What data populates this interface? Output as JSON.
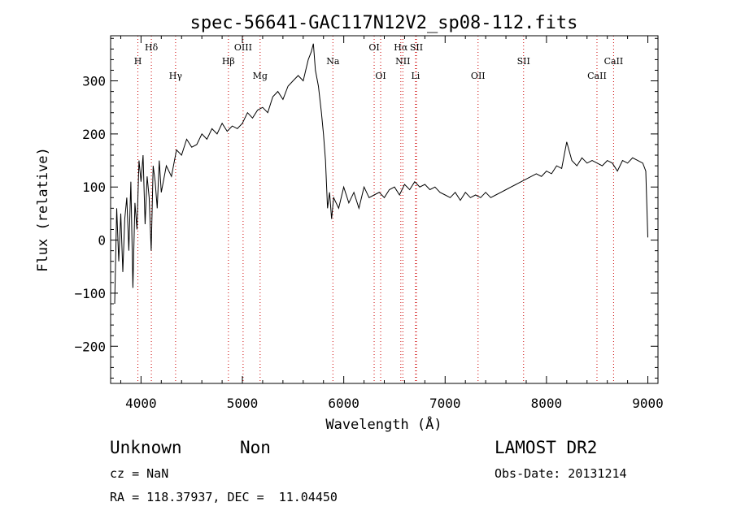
{
  "chart_data": {
    "type": "line",
    "title": "spec-56641-GAC117N12V2_sp08-112.fits",
    "xlabel": "Wavelength (Å)",
    "ylabel": "Flux (relative)",
    "xlim": [
      3700,
      9100
    ],
    "ylim": [
      -270,
      385
    ],
    "xticks": [
      4000,
      5000,
      6000,
      7000,
      8000,
      9000
    ],
    "yticks": [
      -200,
      -100,
      0,
      100,
      200,
      300
    ],
    "x_tick_labels": [
      "4000",
      "5000",
      "6000",
      "7000",
      "8000",
      "9000"
    ],
    "y_tick_labels": [
      "−200",
      "−100",
      "0",
      "100",
      "200",
      "300"
    ],
    "grid": false,
    "legend": "none",
    "line_color": "#000000",
    "marker_color": "#cc0000",
    "series": [
      {
        "x": [
          3740,
          3760,
          3780,
          3800,
          3820,
          3840,
          3860,
          3880,
          3900,
          3920,
          3940,
          3960,
          3980,
          4000,
          4020,
          4040,
          4060,
          4080,
          4100,
          4120,
          4140,
          4160,
          4180,
          4200,
          4250,
          4300,
          4350,
          4400,
          4450,
          4500,
          4550,
          4600,
          4650,
          4700,
          4750,
          4800,
          4850,
          4900,
          4950,
          5000,
          5050,
          5100,
          5150,
          5200,
          5250,
          5300,
          5350,
          5400,
          5450,
          5500,
          5550,
          5600,
          5650,
          5680,
          5700,
          5720,
          5750,
          5780,
          5800,
          5820,
          5840,
          5860,
          5880,
          5900,
          5950,
          6000,
          6050,
          6100,
          6150,
          6200,
          6250,
          6300,
          6350,
          6400,
          6450,
          6500,
          6550,
          6600,
          6650,
          6700,
          6750,
          6800,
          6850,
          6900,
          6950,
          7000,
          7050,
          7100,
          7150,
          7200,
          7250,
          7300,
          7350,
          7400,
          7450,
          7500,
          7550,
          7600,
          7650,
          7700,
          7750,
          7800,
          7850,
          7900,
          7950,
          8000,
          8050,
          8100,
          8150,
          8200,
          8250,
          8300,
          8350,
          8400,
          8450,
          8500,
          8550,
          8600,
          8650,
          8700,
          8750,
          8800,
          8850,
          8900,
          8950,
          8980,
          9000
        ],
        "y": [
          -120,
          60,
          -40,
          50,
          -60,
          40,
          80,
          -20,
          110,
          -90,
          70,
          20,
          150,
          110,
          160,
          30,
          120,
          80,
          -20,
          140,
          110,
          60,
          150,
          90,
          140,
          120,
          170,
          160,
          190,
          175,
          180,
          200,
          190,
          210,
          200,
          220,
          205,
          215,
          210,
          220,
          240,
          230,
          245,
          250,
          240,
          270,
          280,
          265,
          290,
          300,
          310,
          300,
          340,
          355,
          370,
          320,
          290,
          240,
          200,
          150,
          60,
          90,
          40,
          80,
          60,
          100,
          70,
          90,
          60,
          100,
          80,
          85,
          90,
          80,
          95,
          100,
          85,
          105,
          95,
          110,
          100,
          105,
          95,
          100,
          90,
          85,
          80,
          90,
          75,
          90,
          80,
          85,
          80,
          90,
          80,
          85,
          90,
          95,
          100,
          105,
          110,
          115,
          120,
          125,
          120,
          130,
          125,
          140,
          135,
          185,
          150,
          140,
          155,
          145,
          150,
          145,
          140,
          150,
          145,
          130,
          150,
          145,
          155,
          150,
          145,
          130,
          5
        ]
      }
    ],
    "spectral_lines": [
      {
        "label": "H",
        "x": 3969,
        "row": 2
      },
      {
        "label": "Hδ",
        "x": 4102,
        "row": 1
      },
      {
        "label": "Hγ",
        "x": 4341,
        "row": 3
      },
      {
        "label": "Hβ",
        "x": 4862,
        "row": 2
      },
      {
        "label": "OIII",
        "x": 5007,
        "row": 1
      },
      {
        "label": "Mg",
        "x": 5175,
        "row": 3
      },
      {
        "label": "Na",
        "x": 5893,
        "row": 2
      },
      {
        "label": "OI",
        "x": 6300,
        "row": 1
      },
      {
        "label": "OI",
        "x": 6364,
        "row": 3
      },
      {
        "label": "Hα",
        "x": 6563,
        "row": 1
      },
      {
        "label": "NII",
        "x": 6583,
        "row": 2
      },
      {
        "label": "SII",
        "x": 6717,
        "row": 1
      },
      {
        "label": "Li",
        "x": 6708,
        "row": 3
      },
      {
        "label": "OII",
        "x": 7325,
        "row": 3
      },
      {
        "label": "SII",
        "x": 7774,
        "row": 2
      },
      {
        "label": "CaII",
        "x": 8498,
        "row": 3
      },
      {
        "label": "CaII",
        "x": 8662,
        "row": 2
      }
    ]
  },
  "info": {
    "class": "Unknown",
    "subclass": "Non",
    "cz": "cz = NaN",
    "coords": "RA = 118.37937, DEC =  11.04450",
    "survey": "LAMOST DR2",
    "obs_date": "Obs-Date: 20131214"
  }
}
